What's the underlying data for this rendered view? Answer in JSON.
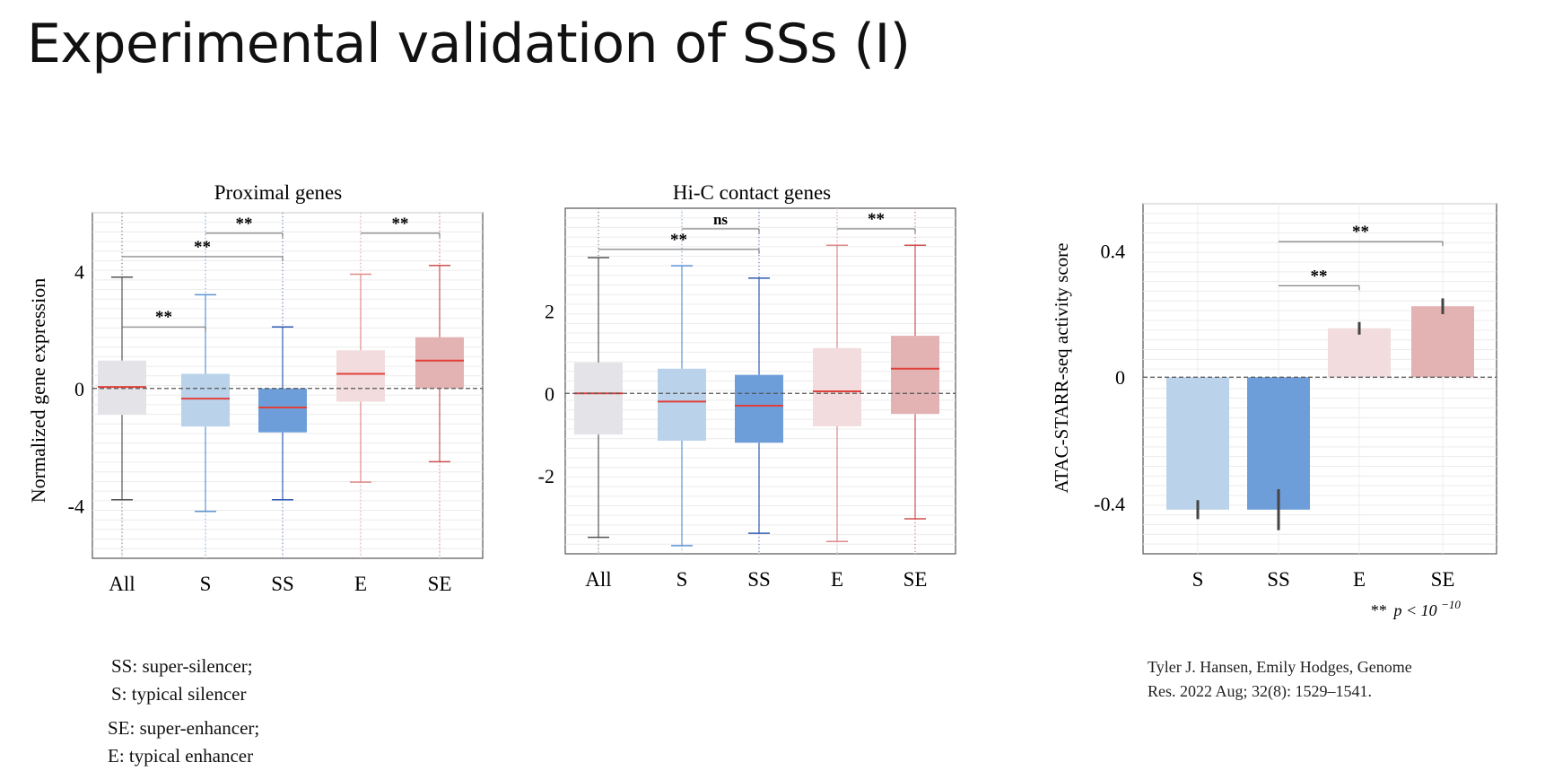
{
  "slide": {
    "title": "Experimental validation of SSs (I)"
  },
  "legend": {
    "lines_a": [
      "SS: super-silencer;",
      "S: typical silencer"
    ],
    "lines_b": [
      "SE: super-enhancer;",
      "E: typical enhancer"
    ]
  },
  "citation": {
    "line1": "Tyler J. Hansen, Emily Hodges, Genome",
    "line2": "Res. 2022 Aug; 32(8): 1529–1541."
  },
  "footnote": {
    "stars": "**",
    "text": "p < 10",
    "exponent": "−10"
  },
  "colors": {
    "All": "#e4e4e8",
    "S": "#bad3ea",
    "SS": "#6e9ed9",
    "E": "#f2dcdd",
    "SE": "#e2b3b2",
    "S_line": "#5b95d6",
    "SS_line": "#2f5cb5",
    "E_line": "#e08a8a",
    "SE_line": "#d05050",
    "All_line": "#555555",
    "median": "#e0403a"
  },
  "chart_data": [
    {
      "id": "proximal",
      "type": "box",
      "title": "Proximal genes",
      "ylabel": "Normalized gene expression",
      "xlabel": "",
      "categories": [
        "All",
        "S",
        "SS",
        "E",
        "SE"
      ],
      "ylim": [
        -5.8,
        6.0
      ],
      "yticks": [
        4,
        0,
        -4
      ],
      "ytick_labels": [
        "4",
        "0",
        "-4"
      ],
      "boxes": [
        {
          "category": "All",
          "whisker_low": -3.8,
          "q1": -0.9,
          "median": 0.05,
          "q3": 0.95,
          "whisker_high": 3.8
        },
        {
          "category": "S",
          "whisker_low": -4.2,
          "q1": -1.3,
          "median": -0.35,
          "q3": 0.5,
          "whisker_high": 3.2
        },
        {
          "category": "SS",
          "whisker_low": -3.8,
          "q1": -1.5,
          "median": -0.65,
          "q3": 0.0,
          "whisker_high": 2.1
        },
        {
          "category": "E",
          "whisker_low": -3.2,
          "q1": -0.45,
          "median": 0.5,
          "q3": 1.3,
          "whisker_high": 3.9
        },
        {
          "category": "SE",
          "whisker_low": -2.5,
          "q1": 0.0,
          "median": 0.95,
          "q3": 1.75,
          "whisker_high": 4.2
        }
      ],
      "reference_line": 0,
      "grid": true,
      "significance": [
        {
          "from": "All",
          "to": "S",
          "label": "**",
          "y": 2.1
        },
        {
          "from": "All",
          "to": "SS",
          "label": "**",
          "y": 4.5
        },
        {
          "from": "S",
          "to": "SS",
          "label": "**",
          "y": 5.3
        },
        {
          "from": "E",
          "to": "SE",
          "label": "**",
          "y": 5.3
        }
      ]
    },
    {
      "id": "hic",
      "type": "box",
      "title": "Hi-C contact genes",
      "ylabel": "",
      "xlabel": "",
      "categories": [
        "All",
        "S",
        "SS",
        "E",
        "SE"
      ],
      "ylim": [
        -3.9,
        4.5
      ],
      "yticks": [
        2,
        0,
        -2
      ],
      "ytick_labels": [
        "2",
        "0",
        "-2"
      ],
      "boxes": [
        {
          "category": "All",
          "whisker_low": -3.5,
          "q1": -1.0,
          "median": 0.0,
          "q3": 0.75,
          "whisker_high": 3.3
        },
        {
          "category": "S",
          "whisker_low": -3.7,
          "q1": -1.15,
          "median": -0.2,
          "q3": 0.6,
          "whisker_high": 3.1
        },
        {
          "category": "SS",
          "whisker_low": -3.4,
          "q1": -1.2,
          "median": -0.3,
          "q3": 0.45,
          "whisker_high": 2.8
        },
        {
          "category": "E",
          "whisker_low": -3.6,
          "q1": -0.8,
          "median": 0.05,
          "q3": 1.1,
          "whisker_high": 3.6
        },
        {
          "category": "SE",
          "whisker_low": -3.05,
          "q1": -0.5,
          "median": 0.6,
          "q3": 1.4,
          "whisker_high": 3.6
        }
      ],
      "reference_line": 0,
      "grid": true,
      "significance": [
        {
          "from": "All",
          "to": "SS",
          "label": "**",
          "y": 3.5
        },
        {
          "from": "S",
          "to": "SS",
          "label": "ns",
          "y": 4.0
        },
        {
          "from": "E",
          "to": "SE",
          "label": "**",
          "y": 4.0
        }
      ]
    },
    {
      "id": "atac",
      "type": "bar",
      "title": "",
      "ylabel": "ATAC-STARR-seq activity score",
      "xlabel": "",
      "categories": [
        "S",
        "SS",
        "E",
        "SE"
      ],
      "values": [
        -0.42,
        -0.42,
        0.155,
        0.225
      ],
      "errors": [
        0.03,
        0.065,
        0.02,
        0.025
      ],
      "ylim": [
        -0.56,
        0.55
      ],
      "yticks": [
        0.4,
        0,
        -0.4
      ],
      "ytick_labels": [
        "0.4",
        "0",
        "-0.4"
      ],
      "reference_line": 0,
      "grid": true,
      "significance": [
        {
          "from": "SS",
          "to": "E",
          "label": "**",
          "y": 0.29
        },
        {
          "from": "SS",
          "to": "SE",
          "label": "**",
          "y": 0.43
        }
      ]
    }
  ]
}
